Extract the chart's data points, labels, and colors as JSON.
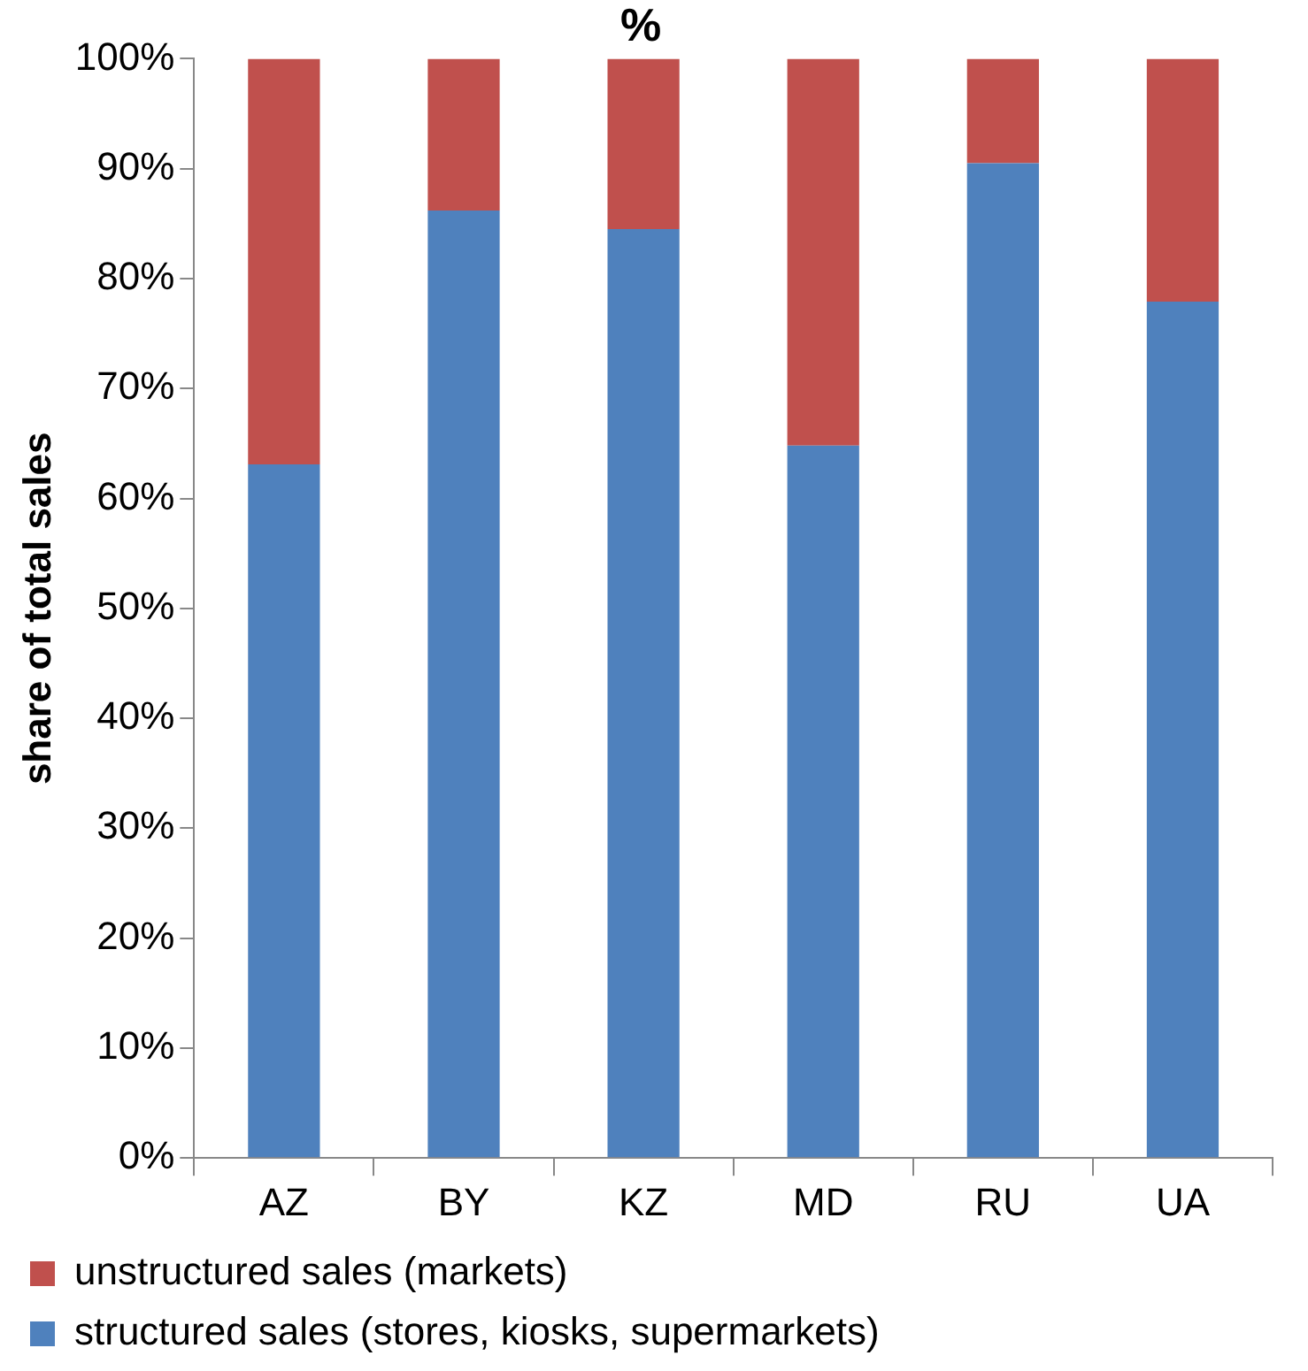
{
  "chart_data": {
    "type": "bar",
    "title": "%",
    "ylabel": "share of total sales",
    "stacked": true,
    "categories": [
      "AZ",
      "BY",
      "KZ",
      "MD",
      "RU",
      "UA"
    ],
    "series": [
      {
        "name": "structured sales (stores, kiosks, supermarkets)",
        "color": "#4f81bd",
        "values": [
          63.1,
          86.2,
          84.5,
          64.8,
          90.5,
          77.9
        ]
      },
      {
        "name": "unstructured sales (markets)",
        "color": "#c0504d",
        "values": [
          36.9,
          13.8,
          15.5,
          35.2,
          9.5,
          22.1
        ]
      }
    ],
    "ylim": [
      0,
      100
    ],
    "yticks": [
      {
        "value": 0,
        "label": "0%"
      },
      {
        "value": 10,
        "label": "10%"
      },
      {
        "value": 20,
        "label": "20%"
      },
      {
        "value": 30,
        "label": "30%"
      },
      {
        "value": 40,
        "label": "40%"
      },
      {
        "value": 50,
        "label": "50%"
      },
      {
        "value": 60,
        "label": "60%"
      },
      {
        "value": 70,
        "label": "70%"
      },
      {
        "value": 80,
        "label": "80%"
      },
      {
        "value": 90,
        "label": "90%"
      },
      {
        "value": 100,
        "label": "100%"
      }
    ],
    "grid": false,
    "legend": "bottom"
  }
}
